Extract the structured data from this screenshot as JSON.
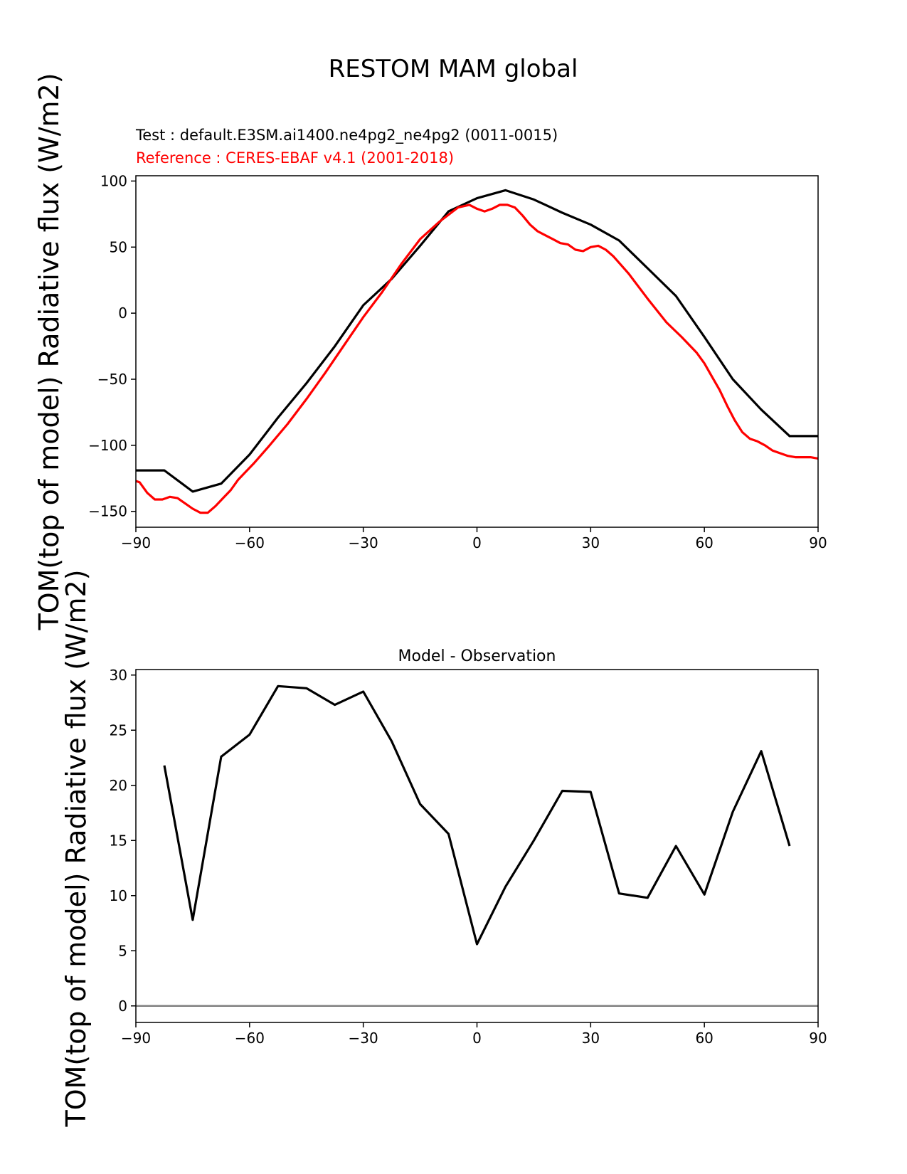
{
  "figure": {
    "title": "RESTOM MAM global",
    "test_label": "Test : default.E3SM.ai1400.ne4pg2_ne4pg2 (0011-0015)",
    "ref_label": "Reference : CERES-EBAF v4.1 (2001-2018)",
    "colors": {
      "test": "#000000",
      "reference": "#ff0000",
      "zero_line": "#808080"
    }
  },
  "chart_data": [
    {
      "type": "line",
      "title": "",
      "xlabel": "",
      "ylabel": "TOM(top of model) Radiative flux (W/m2)",
      "xlim": [
        -90,
        90
      ],
      "ylim": [
        -162,
        104
      ],
      "xticks": [
        -90,
        -60,
        -30,
        0,
        30,
        60,
        90
      ],
      "yticks": [
        -150,
        -100,
        -50,
        0,
        50,
        100
      ],
      "grid": false,
      "series": [
        {
          "name": "Test",
          "color": "#000000",
          "x": [
            -90,
            -82.5,
            -75,
            -67.5,
            -60,
            -52.5,
            -45,
            -37.5,
            -30,
            -22.5,
            -15,
            -7.5,
            0,
            7.5,
            15,
            22.5,
            30,
            37.5,
            45,
            52.5,
            60,
            67.5,
            75,
            82.5,
            90
          ],
          "y": [
            -119,
            -119,
            -135,
            -129,
            -107,
            -79,
            -53,
            -25,
            6,
            26,
            51,
            77,
            87,
            93,
            86,
            76,
            67,
            55,
            34,
            13,
            -18,
            -50,
            -73,
            -93,
            -93
          ]
        },
        {
          "name": "Reference",
          "color": "#ff0000",
          "x": [
            -90,
            -89,
            -87,
            -85,
            -83,
            -81,
            -79,
            -77,
            -75,
            -73,
            -71,
            -69,
            -67,
            -65,
            -63,
            -61,
            -59,
            -55,
            -50,
            -45,
            -40,
            -35,
            -30,
            -25,
            -20,
            -15,
            -10,
            -5,
            -2,
            0,
            2,
            4,
            6,
            8,
            10,
            12,
            14,
            16,
            18,
            20,
            22,
            24,
            26,
            28,
            30,
            32,
            34,
            36,
            40,
            45,
            50,
            54,
            58,
            60,
            62,
            64,
            66,
            68,
            70,
            72,
            74,
            76,
            78,
            80,
            82,
            84,
            86,
            88,
            90
          ],
          "y": [
            -127,
            -128,
            -136,
            -141,
            -141,
            -139,
            -140,
            -144,
            -148,
            -151,
            -151,
            -146,
            -140,
            -134,
            -126,
            -120,
            -114,
            -101,
            -84,
            -65,
            -45,
            -24,
            -3,
            16,
            37,
            56,
            69,
            80,
            82,
            79,
            77,
            79,
            82,
            82,
            80,
            74,
            67,
            62,
            59,
            56,
            53,
            52,
            48,
            47,
            50,
            51,
            48,
            43,
            30,
            11,
            -7,
            -18,
            -30,
            -38,
            -48,
            -58,
            -70,
            -81,
            -90,
            -95,
            -97,
            -100,
            -104,
            -106,
            -108,
            -109,
            -109,
            -109,
            -110
          ]
        }
      ]
    },
    {
      "type": "line",
      "title": "Model - Observation",
      "xlabel": "",
      "ylabel": "TOM(top of model) Radiative flux (W/m2)",
      "xlim": [
        -90,
        90
      ],
      "ylim": [
        -1.5,
        30.5
      ],
      "xticks": [
        -90,
        -60,
        -30,
        0,
        30,
        60,
        90
      ],
      "yticks": [
        0,
        5,
        10,
        15,
        20,
        25,
        30
      ],
      "grid": false,
      "zero_line": 0,
      "series": [
        {
          "color": "#000000",
          "x": [
            -82.5,
            -75,
            -67.5,
            -60,
            -52.5,
            -45,
            -37.5,
            -30,
            -22.5,
            -15,
            -7.5,
            0,
            7.5,
            15,
            22.5,
            30,
            37.5,
            45,
            52.5,
            60,
            67.5,
            75,
            82.5
          ],
          "y": [
            21.8,
            7.8,
            22.6,
            24.6,
            29.0,
            28.8,
            27.3,
            28.5,
            24.0,
            18.3,
            15.6,
            5.6,
            10.8,
            15.0,
            19.5,
            19.4,
            10.2,
            9.8,
            14.5,
            10.1,
            17.6,
            23.1,
            14.5
          ]
        }
      ]
    }
  ]
}
